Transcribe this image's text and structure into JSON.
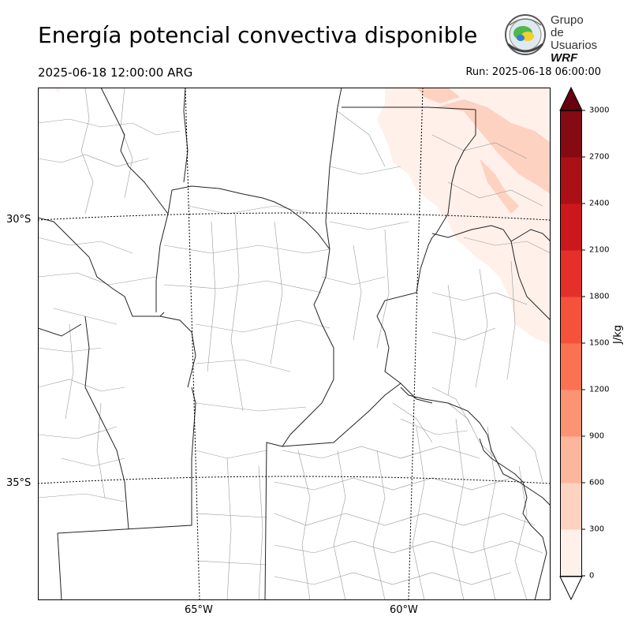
{
  "header": {
    "title": "Energía potencial convectiva disponible",
    "valid_time": "2025-06-18 12:00:00 ARG",
    "run_time": "Run: 2025-06-18 06:00:00"
  },
  "logo": {
    "line1": "Grupo de",
    "line2": "Usuarios",
    "line3": "WRF",
    "icon": "globe-seal-icon"
  },
  "map": {
    "lat_labels": [
      "30°S",
      "35°S"
    ],
    "lon_labels": [
      "65°W",
      "60°W"
    ],
    "cape_field": "low CAPE (0–600 J/kg) over northeast corner"
  },
  "colorbar": {
    "unit": "J/kg",
    "ticks": [
      "0",
      "300",
      "600",
      "900",
      "1200",
      "1500",
      "1800",
      "2100",
      "2400",
      "2700",
      "3000"
    ],
    "colors": [
      "#fff0ea",
      "#fdd2c1",
      "#fcb69b",
      "#fc9474",
      "#fb7252",
      "#f5523b",
      "#e53029",
      "#cc181d",
      "#aa1016",
      "#850a12"
    ],
    "over_color": "#67000d"
  }
}
